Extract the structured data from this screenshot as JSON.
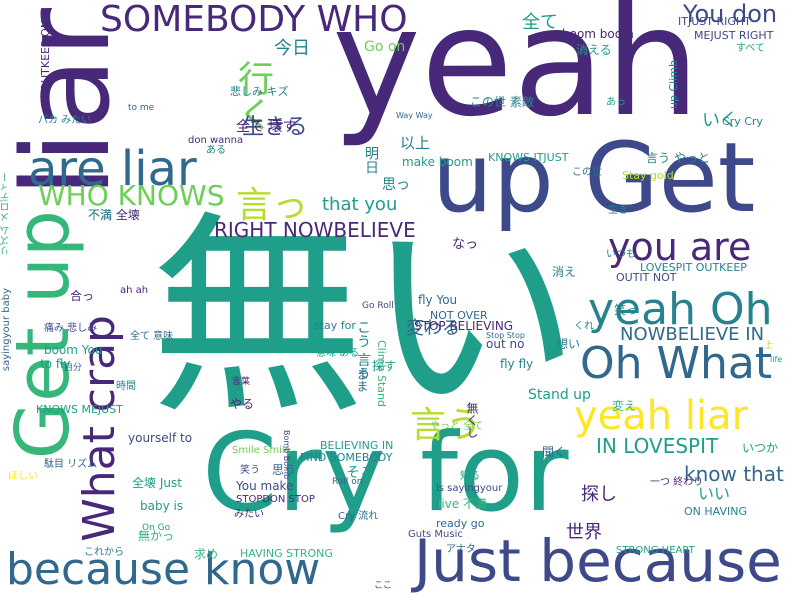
{
  "words": [
    "liar",
    "yeah",
    "無い",
    "Cry for",
    "Get up",
    "up Get",
    "because know",
    "Just because",
    "What crap",
    "are liar",
    "Oh What",
    "yeah Oh",
    "yeah liar",
    "you are",
    "SOMEBODY WHO",
    "行く",
    "言っ",
    "言う",
    "WHO KNOWS",
    "RIGHT NOWBELIEVE",
    "You don",
    "全て",
    "生きる",
    "今日",
    "NOWBELIEVE IN",
    "IN LOVESPIT",
    "変わる",
    "that you",
    "Go on",
    "ITJUST RIGHT",
    "MEJUST RIGHT",
    "boom boom",
    "消える",
    "以上",
    "明日",
    "不満 全壊",
    "思っ",
    "know that",
    "世界",
    "探し",
    "いい",
    "いく",
    "なっ",
    "Stand up",
    "fly You",
    "fly fly",
    "out no",
    "STOP BELIEVING",
    "make boom",
    "KNOWS ITJUST",
    "LOVESPIT OUTKEEP",
    "OUTKEEP ON",
    "OUTIT NOT",
    "NOT OVER",
    "BELIEVING IN",
    "FIND SOMEBODY",
    "HAVING STRONG",
    "STRONG HEART",
    "ON HAVING",
    "STOPDON STOP",
    "Guts Music",
    "ready go",
    "live 不満",
    "is sayingyour",
    "Cry 流れ",
    "yourself to",
    "boom You",
    "to fly",
    "stay for",
    "Smile Smile",
    "You make",
    "baby is",
    "Climb Stand",
    "up Climb",
    "Cry Cry",
    "Stay gold",
    "don wanna",
    "Way Way",
    "Roll on",
    "Go Roll",
    "On Go",
    "KNOWS MEJUST",
    "sayingyour baby",
    "リズム メロディー",
    "パカ みたい",
    "全壊 Just",
    "全て 壊す",
    "全て 意味",
    "悲しみ キズ",
    "痛み 悲しみ",
    "駄目 リズム",
    "求め",
    "無かっ",
    "思う",
    "笑っ",
    "消え",
    "一つ 終わり",
    "いつか",
    "聞く",
    "そこ",
    "まま",
    "こう 言う",
    "やっと 全て",
    "言う やっと",
    "無くし",
    "くれ",
    "合っ",
    "不満",
    "ある",
    "意味 ある",
    "探す",
    "変え",
    "ah ah",
    "時間",
    "やる",
    "言葉",
    "アナタ",
    "これから",
    "みたい",
    "Bomb Bomb",
    "あっ",
    "すべて",
    "この世 素敵",
    "この世",
    "生き",
    "いつも",
    "想い",
    "知る",
    "上",
    "to me",
    "Stop Stop",
    "life",
    "ほしい",
    "笑う",
    "ここ",
    "自分"
  ]
}
